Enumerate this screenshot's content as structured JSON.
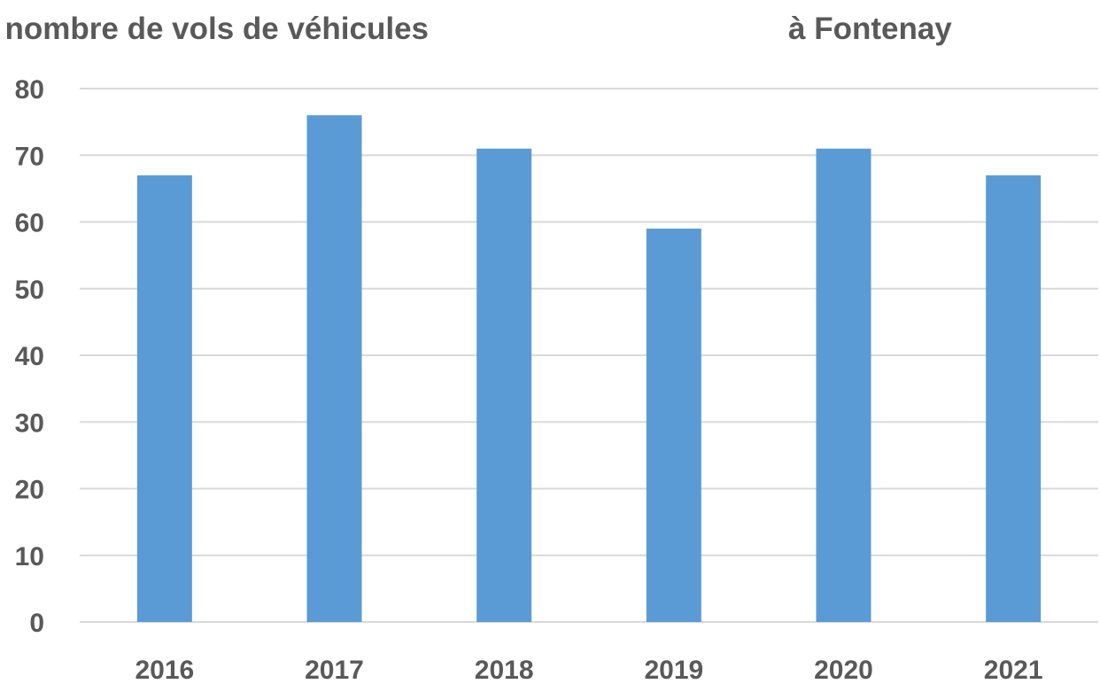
{
  "chart_data": {
    "type": "bar",
    "title": "nombre de vols de véhicules à Fontenay",
    "title_parts": [
      "nombre de vols de véhicules",
      "à Fontenay"
    ],
    "xlabel": "",
    "ylabel": "",
    "categories": [
      "2016",
      "2017",
      "2018",
      "2019",
      "2020",
      "2021"
    ],
    "series": [
      {
        "values": [
          67,
          76,
          71,
          59,
          71,
          67
        ]
      }
    ],
    "ylim": [
      0,
      80
    ],
    "yticks": [
      0,
      10,
      20,
      30,
      40,
      50,
      60,
      70,
      80
    ],
    "grid": true,
    "legend": "none",
    "colors": {
      "bar": "#5B9BD5",
      "grid": "#D9D9D9",
      "text": "#595959"
    }
  }
}
